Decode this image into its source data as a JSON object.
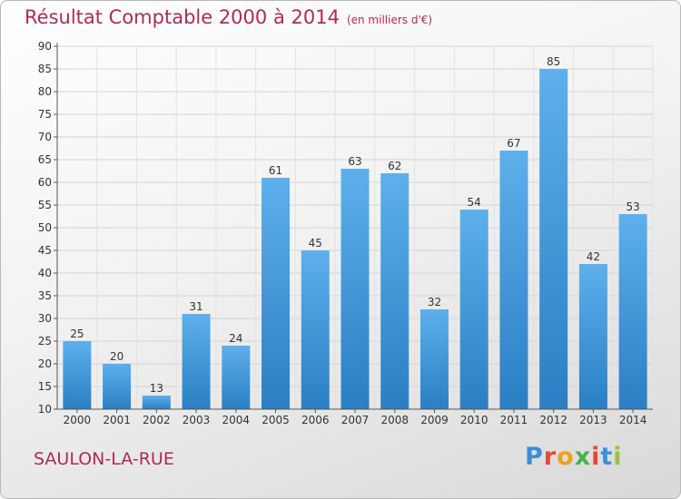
{
  "header": {
    "title": "Résultat Comptable 2000 à 2014",
    "unit": "(en milliers d'€)"
  },
  "footer": {
    "commune": "SAULON-LA-RUE",
    "brand": "Proxiti"
  },
  "colors": {
    "bar_light": "#5db0ec",
    "bar_dark": "#2a7fc4",
    "title": "#b02a57"
  },
  "chart_data": {
    "type": "bar",
    "title": "Résultat Comptable 2000 à 2014",
    "subtitle": "(en milliers d'€)",
    "xlabel": "",
    "ylabel": "",
    "categories": [
      "2000",
      "2001",
      "2002",
      "2003",
      "2004",
      "2005",
      "2006",
      "2007",
      "2008",
      "2009",
      "2010",
      "2011",
      "2012",
      "2013",
      "2014"
    ],
    "values": [
      25,
      20,
      13,
      31,
      24,
      61,
      45,
      63,
      62,
      32,
      54,
      67,
      85,
      42,
      53
    ],
    "ylim": [
      10,
      90
    ],
    "yticks": [
      10,
      15,
      20,
      25,
      30,
      35,
      40,
      45,
      50,
      55,
      60,
      65,
      70,
      75,
      80,
      85,
      90
    ],
    "grid": true,
    "legend": "none"
  }
}
